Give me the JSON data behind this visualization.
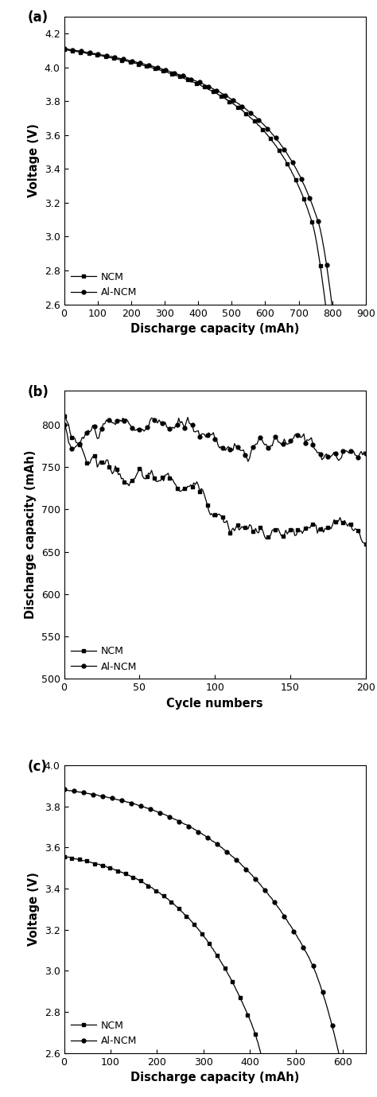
{
  "fig_width": 4.74,
  "fig_height": 13.79,
  "background_color": "#ffffff",
  "panel_a": {
    "label": "(a)",
    "xlabel": "Discharge capacity (mAh)",
    "ylabel": "Voltage (V)",
    "xlim": [
      0,
      900
    ],
    "ylim": [
      2.6,
      4.3
    ],
    "xticks": [
      0,
      100,
      200,
      300,
      400,
      500,
      600,
      700,
      800,
      900
    ],
    "yticks": [
      2.6,
      2.8,
      3.0,
      3.2,
      3.4,
      3.6,
      3.8,
      4.0,
      4.2
    ],
    "legend_labels": [
      "Al-NCM",
      "NCM"
    ],
    "legend_markers": [
      "o",
      "s"
    ],
    "marker_size": 3.5
  },
  "panel_b": {
    "label": "(b)",
    "xlabel": "Cycle numbers",
    "ylabel": "Discharge capacity (mAh)",
    "xlim": [
      0,
      200
    ],
    "ylim": [
      500,
      840
    ],
    "xticks": [
      0,
      50,
      100,
      150,
      200
    ],
    "yticks": [
      500,
      550,
      600,
      650,
      700,
      750,
      800
    ],
    "legend_labels": [
      "Al-NCM",
      "NCM"
    ],
    "legend_markers": [
      "o",
      "s"
    ],
    "marker_size": 3.5
  },
  "panel_c": {
    "label": "(c)",
    "xlabel": "Discharge capacity (mAh)",
    "ylabel": "Voltage (V)",
    "xlim": [
      0,
      650
    ],
    "ylim": [
      2.6,
      4.0
    ],
    "xticks": [
      0,
      100,
      200,
      300,
      400,
      500,
      600
    ],
    "yticks": [
      2.6,
      2.8,
      3.0,
      3.2,
      3.4,
      3.6,
      3.8,
      4.0
    ],
    "legend_labels": [
      "Al-NCM",
      "NCM"
    ],
    "legend_markers": [
      "o",
      "s"
    ],
    "marker_size": 3.5
  }
}
